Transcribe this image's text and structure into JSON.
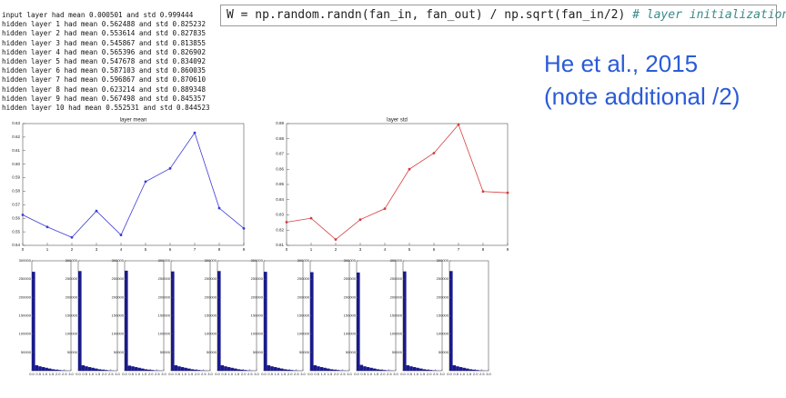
{
  "log": [
    "input layer had mean 0.000501 and std 0.999444",
    "hidden layer 1 had mean 0.562488 and std 0.825232",
    "hidden layer 2 had mean 0.553614 and std 0.827835",
    "hidden layer 3 had mean 0.545867 and std 0.813855",
    "hidden layer 4 had mean 0.565396 and std 0.826902",
    "hidden layer 5 had mean 0.547678 and std 0.834092",
    "hidden layer 6 had mean 0.587103 and std 0.860035",
    "hidden layer 7 had mean 0.596867 and std 0.870610",
    "hidden layer 8 had mean 0.623214 and std 0.889348",
    "hidden layer 9 had mean 0.567498 and std 0.845357",
    "hidden layer 10 had mean 0.552531 and std 0.844523"
  ],
  "code": {
    "statement": "W = np.random.randn(fan_in, fan_out) / np.sqrt(fan_in/2) ",
    "comment": "# layer initialization"
  },
  "caption": [
    "He et al., 2015",
    "(note additional /2)"
  ],
  "chart_data": [
    {
      "type": "line",
      "title": "layer mean",
      "color": "#3b3bd6",
      "x": [
        0,
        1,
        2,
        3,
        4,
        5,
        6,
        7,
        8,
        9
      ],
      "values": [
        0.562488,
        0.553614,
        0.545867,
        0.565396,
        0.547678,
        0.587103,
        0.596867,
        0.623214,
        0.567498,
        0.552531
      ],
      "xlim": [
        0,
        9
      ],
      "xticks": [
        0,
        1,
        2,
        3,
        4,
        5,
        6,
        7,
        8,
        9
      ],
      "ylim": [
        0.54,
        0.63
      ],
      "yticks": [
        0.54,
        0.55,
        0.56,
        0.57,
        0.58,
        0.59,
        {
          "value": 0.6,
          "label": "0.60"
        },
        0.61,
        0.62,
        0.63
      ]
    },
    {
      "type": "line",
      "title": "layer std",
      "color": "#d63b3b",
      "x": [
        0,
        1,
        2,
        3,
        4,
        5,
        6,
        7,
        8,
        9
      ],
      "values": [
        0.825232,
        0.827835,
        0.813855,
        0.826902,
        0.834092,
        0.860035,
        0.87061,
        0.889348,
        0.845357,
        0.844523
      ],
      "xlim": [
        0,
        9
      ],
      "xticks": [
        0,
        1,
        2,
        3,
        4,
        5,
        6,
        7,
        8,
        9
      ],
      "ylim": [
        0.81,
        0.89
      ],
      "yticks": [
        0.81,
        0.82,
        0.83,
        0.84,
        0.85,
        0.86,
        0.87,
        0.88,
        0.89
      ]
    },
    {
      "type": "histogram",
      "color": "#1a1a8c",
      "bins": [
        0,
        0.25,
        0.5,
        0.75,
        1,
        1.25,
        1.5,
        1.75,
        2,
        2.25,
        2.5,
        2.75,
        3
      ],
      "counts": [
        270000,
        15000,
        12000,
        10000,
        8000,
        6000,
        4000,
        3000,
        2000,
        1000,
        500,
        200
      ],
      "xlim": [
        0,
        3
      ],
      "xticks": [
        {
          "value": 0,
          "label": "0.0"
        },
        0.5,
        {
          "value": 1,
          "label": "1.0"
        },
        1.5,
        {
          "value": 2,
          "label": "2.0"
        },
        2.5,
        {
          "value": 3,
          "label": "3.0"
        }
      ],
      "ylim": [
        0,
        300000
      ],
      "yticks": [
        50000,
        100000,
        150000,
        200000,
        250000,
        300000
      ]
    },
    {
      "type": "histogram",
      "color": "#1a1a8c",
      "bins": [
        0,
        0.25,
        0.5,
        0.75,
        1,
        1.25,
        1.5,
        1.75,
        2,
        2.25,
        2.5,
        2.75,
        3
      ],
      "counts": [
        272000,
        15000,
        12000,
        10000,
        8000,
        6000,
        4000,
        3000,
        2000,
        1000,
        500,
        200
      ],
      "xlim": [
        0,
        3
      ],
      "xticks": [
        {
          "value": 0,
          "label": "0.0"
        },
        0.5,
        {
          "value": 1,
          "label": "1.0"
        },
        1.5,
        {
          "value": 2,
          "label": "2.0"
        },
        2.5,
        {
          "value": 3,
          "label": "3.0"
        }
      ],
      "ylim": [
        0,
        300000
      ],
      "yticks": [
        50000,
        100000,
        150000,
        200000,
        250000,
        300000
      ]
    },
    {
      "type": "histogram",
      "color": "#1a1a8c",
      "bins": [
        0,
        0.25,
        0.5,
        0.75,
        1,
        1.25,
        1.5,
        1.75,
        2,
        2.25,
        2.5,
        2.75,
        3
      ],
      "counts": [
        273000,
        14000,
        12000,
        10000,
        8000,
        6000,
        4000,
        3000,
        2000,
        1000,
        500,
        200
      ],
      "xlim": [
        0,
        3
      ],
      "xticks": [
        {
          "value": 0,
          "label": "0.0"
        },
        0.5,
        {
          "value": 1,
          "label": "1.0"
        },
        1.5,
        {
          "value": 2,
          "label": "2.0"
        },
        2.5,
        {
          "value": 3,
          "label": "3.0"
        }
      ],
      "ylim": [
        0,
        300000
      ],
      "yticks": [
        50000,
        100000,
        150000,
        200000,
        250000,
        300000
      ]
    },
    {
      "type": "histogram",
      "color": "#1a1a8c",
      "bins": [
        0,
        0.25,
        0.5,
        0.75,
        1,
        1.25,
        1.5,
        1.75,
        2,
        2.25,
        2.5,
        2.75,
        3
      ],
      "counts": [
        271000,
        15000,
        12000,
        10000,
        8000,
        6000,
        4000,
        3000,
        2000,
        1000,
        500,
        200
      ],
      "xlim": [
        0,
        3
      ],
      "xticks": [
        {
          "value": 0,
          "label": "0.0"
        },
        0.5,
        {
          "value": 1,
          "label": "1.0"
        },
        1.5,
        {
          "value": 2,
          "label": "2.0"
        },
        2.5,
        {
          "value": 3,
          "label": "3.0"
        }
      ],
      "ylim": [
        0,
        300000
      ],
      "yticks": [
        50000,
        100000,
        150000,
        200000,
        250000,
        300000
      ]
    },
    {
      "type": "histogram",
      "color": "#1a1a8c",
      "bins": [
        0,
        0.25,
        0.5,
        0.75,
        1,
        1.25,
        1.5,
        1.75,
        2,
        2.25,
        2.5,
        2.75,
        3
      ],
      "counts": [
        272000,
        15000,
        12000,
        10000,
        8000,
        6000,
        4000,
        3000,
        2000,
        1000,
        500,
        200
      ],
      "xlim": [
        0,
        3
      ],
      "xticks": [
        {
          "value": 0,
          "label": "0.0"
        },
        0.5,
        {
          "value": 1,
          "label": "1.0"
        },
        1.5,
        {
          "value": 2,
          "label": "2.0"
        },
        2.5,
        {
          "value": 3,
          "label": "3.0"
        }
      ],
      "ylim": [
        0,
        300000
      ],
      "yticks": [
        50000,
        100000,
        150000,
        200000,
        250000,
        300000
      ]
    },
    {
      "type": "histogram",
      "color": "#1a1a8c",
      "bins": [
        0,
        0.25,
        0.5,
        0.75,
        1,
        1.25,
        1.5,
        1.75,
        2,
        2.25,
        2.5,
        2.75,
        3
      ],
      "counts": [
        270000,
        15000,
        12000,
        10000,
        8000,
        6000,
        4000,
        3000,
        2000,
        1000,
        500,
        200
      ],
      "xlim": [
        0,
        3
      ],
      "xticks": [
        {
          "value": 0,
          "label": "0.0"
        },
        0.5,
        {
          "value": 1,
          "label": "1.0"
        },
        1.5,
        {
          "value": 2,
          "label": "2.0"
        },
        2.5,
        {
          "value": 3,
          "label": "3.0"
        }
      ],
      "ylim": [
        0,
        300000
      ],
      "yticks": [
        50000,
        100000,
        150000,
        200000,
        250000,
        300000
      ]
    },
    {
      "type": "histogram",
      "color": "#1a1a8c",
      "bins": [
        0,
        0.25,
        0.5,
        0.75,
        1,
        1.25,
        1.5,
        1.75,
        2,
        2.25,
        2.5,
        2.75,
        3
      ],
      "counts": [
        269000,
        15000,
        12000,
        10000,
        8000,
        6000,
        4000,
        3000,
        2000,
        1000,
        500,
        200
      ],
      "xlim": [
        0,
        3
      ],
      "xticks": [
        {
          "value": 0,
          "label": "0.0"
        },
        0.5,
        {
          "value": 1,
          "label": "1.0"
        },
        1.5,
        {
          "value": 2,
          "label": "2.0"
        },
        2.5,
        {
          "value": 3,
          "label": "3.0"
        }
      ],
      "ylim": [
        0,
        300000
      ],
      "yticks": [
        50000,
        100000,
        150000,
        200000,
        250000,
        300000
      ]
    },
    {
      "type": "histogram",
      "color": "#1a1a8c",
      "bins": [
        0,
        0.25,
        0.5,
        0.75,
        1,
        1.25,
        1.5,
        1.75,
        2,
        2.25,
        2.5,
        2.75,
        3
      ],
      "counts": [
        268000,
        16000,
        12000,
        10000,
        8000,
        6000,
        4000,
        3000,
        2000,
        1000,
        500,
        200
      ],
      "xlim": [
        0,
        3
      ],
      "xticks": [
        {
          "value": 0,
          "label": "0.0"
        },
        0.5,
        {
          "value": 1,
          "label": "1.0"
        },
        1.5,
        {
          "value": 2,
          "label": "2.0"
        },
        2.5,
        {
          "value": 3,
          "label": "3.0"
        }
      ],
      "ylim": [
        0,
        300000
      ],
      "yticks": [
        50000,
        100000,
        150000,
        200000,
        250000,
        300000
      ]
    },
    {
      "type": "histogram",
      "color": "#1a1a8c",
      "bins": [
        0,
        0.25,
        0.5,
        0.75,
        1,
        1.25,
        1.5,
        1.75,
        2,
        2.25,
        2.5,
        2.75,
        3
      ],
      "counts": [
        271000,
        15000,
        12000,
        10000,
        8000,
        6000,
        4000,
        3000,
        2000,
        1000,
        500,
        200
      ],
      "xlim": [
        0,
        3
      ],
      "xticks": [
        {
          "value": 0,
          "label": "0.0"
        },
        0.5,
        {
          "value": 1,
          "label": "1.0"
        },
        1.5,
        {
          "value": 2,
          "label": "2.0"
        },
        2.5,
        {
          "value": 3,
          "label": "3.0"
        }
      ],
      "ylim": [
        0,
        300000
      ],
      "yticks": [
        50000,
        100000,
        150000,
        200000,
        250000,
        300000
      ]
    },
    {
      "type": "histogram",
      "color": "#1a1a8c",
      "bins": [
        0,
        0.25,
        0.5,
        0.75,
        1,
        1.25,
        1.5,
        1.75,
        2,
        2.25,
        2.5,
        2.75,
        3
      ],
      "counts": [
        272000,
        15000,
        12000,
        10000,
        8000,
        6000,
        4000,
        3000,
        2000,
        1000,
        500,
        200
      ],
      "xlim": [
        0,
        3
      ],
      "xticks": [
        {
          "value": 0,
          "label": "0.0"
        },
        0.5,
        {
          "value": 1,
          "label": "1.0"
        },
        1.5,
        {
          "value": 2,
          "label": "2.0"
        },
        2.5,
        {
          "value": 3,
          "label": "3.0"
        }
      ],
      "ylim": [
        0,
        300000
      ],
      "yticks": [
        50000,
        100000,
        150000,
        200000,
        250000,
        300000
      ]
    }
  ]
}
